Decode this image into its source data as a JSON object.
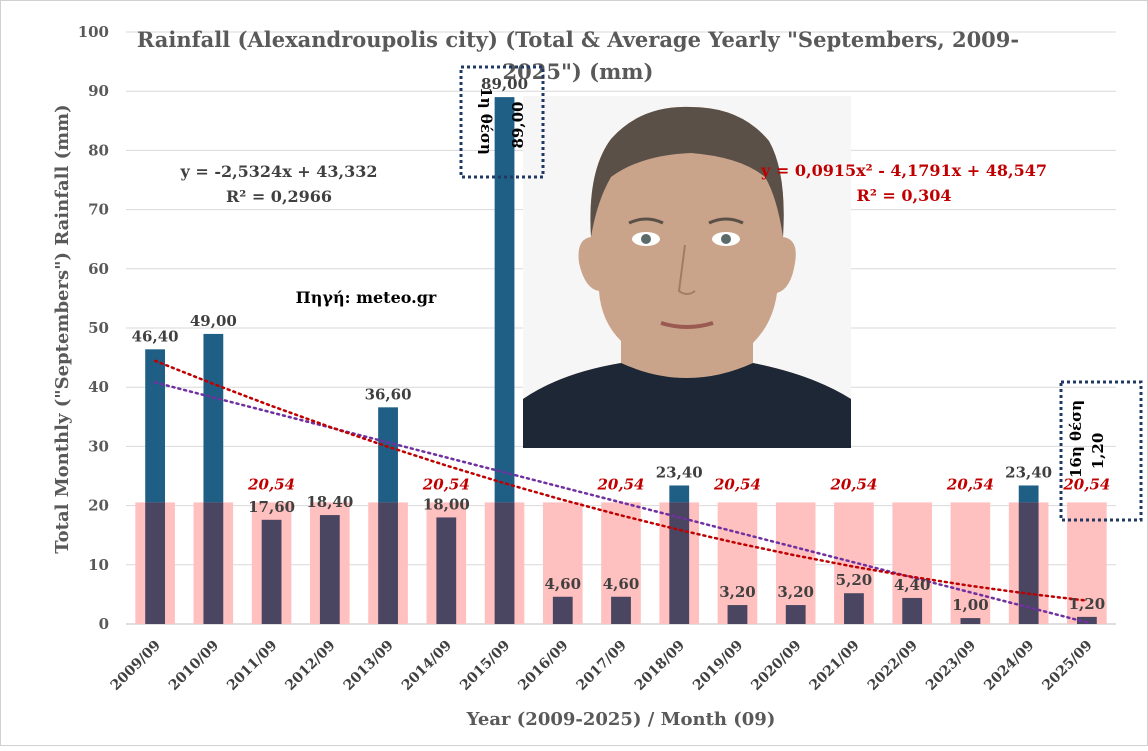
{
  "colors": {
    "background": "#ffffff",
    "average_bar": "#ffc0c0",
    "above_average_bar": "#1f5f85",
    "below_average_bar": "#4a4560",
    "linear_trend": "#7030a0",
    "poly_trend": "#c00000",
    "average_label": "#c00000",
    "grid": "#d9d9d9"
  },
  "chart_data": {
    "type": "bar",
    "title": "Rainfall (Alexandroupolis city) (Total & Average Yearly \"Septembers, 2009-2025\") (mm)",
    "title_lines": [
      "Rainfall (Alexandroupolis city) (Total & Average Yearly \"Septembers, 2009-",
      "2025\") (mm)"
    ],
    "xlabel": "Year (2009-2025) / Month (09)",
    "ylabel": "Total Monthly (\"Septembers\") Rainfall (mm)",
    "ylim": [
      0,
      100
    ],
    "yticks": [
      0,
      10,
      20,
      30,
      40,
      50,
      60,
      70,
      80,
      90,
      100
    ],
    "grid": "horizontal",
    "categories": [
      "2009/09",
      "2010/09",
      "2011/09",
      "2012/09",
      "2013/09",
      "2014/09",
      "2015/09",
      "2016/09",
      "2017/09",
      "2018/09",
      "2019/09",
      "2020/09",
      "2021/09",
      "2022/09",
      "2023/09",
      "2024/09",
      "2025/09"
    ],
    "series": [
      {
        "values": [
          20.54,
          20.54,
          20.54,
          20.54,
          20.54,
          20.54,
          20.54,
          20.54,
          20.54,
          20.54,
          20.54,
          20.54,
          20.54,
          20.54,
          20.54,
          20.54,
          20.54
        ]
      },
      {
        "values": [
          46.4,
          49.0,
          17.6,
          18.4,
          36.6,
          18.0,
          89.0,
          4.6,
          4.6,
          23.4,
          3.2,
          3.2,
          5.2,
          4.4,
          1.0,
          23.4,
          1.2
        ]
      }
    ],
    "value_labels": [
      "46,40",
      "49,00",
      "17,60",
      "18,40",
      "36,60",
      "18,00",
      "89,00",
      "4,60",
      "4,60",
      "23,40",
      "3,20",
      "3,20",
      "5,20",
      "4,40",
      "1,00",
      "23,40",
      "1,20"
    ],
    "average_label": "20,54",
    "average_label_categories": [
      "2011/09",
      "2014/09",
      "2017/09",
      "2019/09",
      "2021/09",
      "2023/09",
      "2025/09"
    ],
    "trendlines": [
      {
        "type": "linear",
        "style": "dotted",
        "equation": "y = -2,5324x + 43,332",
        "r2": "R² = 0,2966",
        "a": -2.5324,
        "b": 43.332
      },
      {
        "type": "polynomial",
        "style": "dotted",
        "equation": "y = 0,0915x² - 4,1791x + 48,547",
        "r2": "R² = 0,304",
        "a": 0.0915,
        "b": -4.1791,
        "c": 48.547
      }
    ],
    "annotations": {
      "source": "Πηγή: meteo.gr",
      "rank_first": {
        "rank": "1η θέση",
        "value": "89,00"
      },
      "rank_last": {
        "rank": "16η θέση",
        "value": "1,20"
      }
    }
  }
}
